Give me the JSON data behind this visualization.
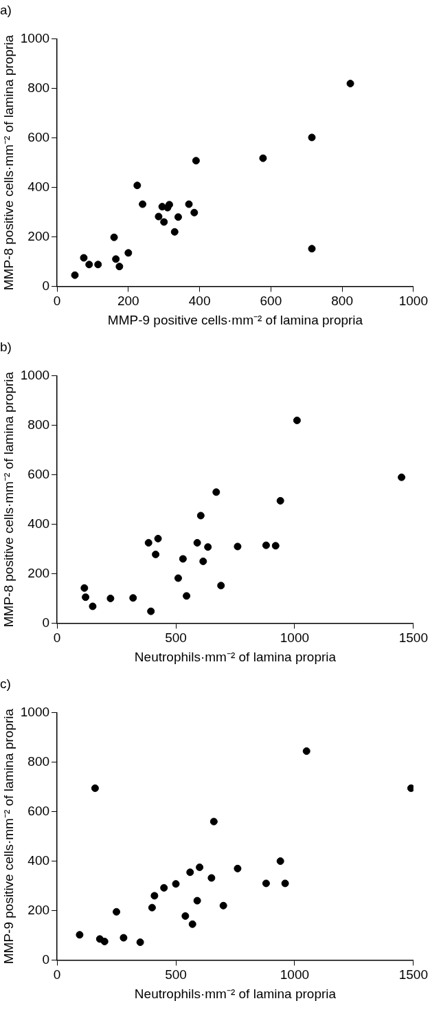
{
  "chart_data": [
    {
      "type": "scatter",
      "title": "a)",
      "xlabel": "MMP-9 positive cells·mm⁻² of lamina propria",
      "ylabel": "MMP-8 positive cells·mm⁻² of lamina propria",
      "color": "#000000",
      "marker": "circle",
      "x": [
        50,
        75,
        90,
        115,
        160,
        165,
        175,
        200,
        225,
        240,
        285,
        295,
        300,
        310,
        315,
        330,
        340,
        370,
        385,
        390,
        578,
        715,
        715,
        823
      ],
      "values": [
        45,
        115,
        88,
        88,
        198,
        110,
        80,
        135,
        408,
        332,
        282,
        322,
        260,
        318,
        330,
        220,
        280,
        332,
        298,
        508,
        518,
        602,
        152,
        820
      ],
      "xlim": [
        0,
        1000
      ],
      "xticks": [
        0,
        200,
        400,
        600,
        800,
        1000
      ],
      "ylim": [
        0,
        1000
      ],
      "yticks": [
        0,
        200,
        400,
        600,
        800,
        1000
      ]
    },
    {
      "type": "scatter",
      "title": "b)",
      "xlabel": "Neutrophils·mm⁻² of lamina propria",
      "ylabel": "MMP-8 positive cells·mm⁻² of lamina propria",
      "color": "#000000",
      "marker": "circle",
      "x": [
        115,
        120,
        150,
        225,
        320,
        385,
        395,
        415,
        425,
        510,
        530,
        545,
        590,
        605,
        615,
        635,
        670,
        690,
        760,
        880,
        920,
        940,
        1010,
        1450
      ],
      "values": [
        142,
        105,
        68,
        100,
        102,
        325,
        48,
        278,
        342,
        182,
        260,
        110,
        325,
        435,
        250,
        308,
        530,
        152,
        310,
        315,
        313,
        495,
        820,
        590
      ],
      "xlim": [
        0,
        1500
      ],
      "xticks": [
        0,
        500,
        1000,
        1500
      ],
      "ylim": [
        0,
        1000
      ],
      "yticks": [
        0,
        200,
        400,
        600,
        800,
        1000
      ]
    },
    {
      "type": "scatter",
      "title": "c)",
      "xlabel": "Neutrophils·mm⁻² of lamina propria",
      "ylabel": "MMP-9 positive cells·mm⁻² of lamina propria",
      "color": "#000000",
      "marker": "circle",
      "x": [
        95,
        160,
        180,
        200,
        250,
        280,
        350,
        400,
        410,
        450,
        500,
        540,
        560,
        570,
        590,
        600,
        650,
        660,
        700,
        760,
        880,
        940,
        960,
        1050,
        1490
      ],
      "values": [
        102,
        695,
        85,
        75,
        195,
        90,
        72,
        212,
        260,
        292,
        308,
        178,
        355,
        145,
        240,
        375,
        332,
        560,
        220,
        370,
        310,
        400,
        310,
        845,
        695
      ],
      "xlim": [
        0,
        1500
      ],
      "xticks": [
        0,
        500,
        1000,
        1500
      ],
      "ylim": [
        0,
        1000
      ],
      "yticks": [
        0,
        200,
        400,
        600,
        800,
        1000
      ]
    }
  ]
}
